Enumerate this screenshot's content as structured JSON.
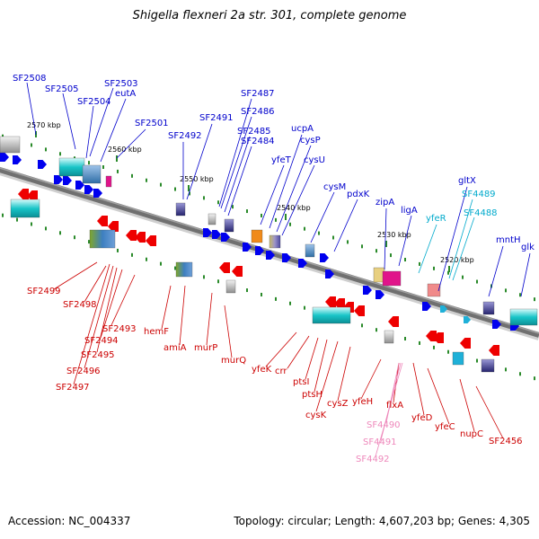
{
  "title": "Shigella flexneri 2a str. 301, complete genome",
  "footer": {
    "accession": "Accession: NC_004337",
    "summary": "Topology: circular; Length: 4,607,203 bp; Genes: 4,305"
  },
  "kbp_labels": [
    "2570 kbp",
    "2560 kbp",
    "2550 kbp",
    "2540 kbp",
    "2530 kbp",
    "2520 kbp"
  ],
  "top_labels": [
    "SF2508",
    "SF2505",
    "SF2504",
    "SF2503",
    "eutA",
    "SF2501",
    "SF2491",
    "SF2492",
    "SF2487",
    "SF2486",
    "SF2485",
    "SF2484",
    "yfeT",
    "ucpA",
    "cysP",
    "cysU",
    "cysM",
    "pdxK",
    "zipA",
    "ligA",
    "yfeR",
    "gltX",
    "SF4489",
    "SF4488",
    "mntH",
    "glk"
  ],
  "bottom_labels": [
    "SF2499",
    "SF2498",
    "SF2493",
    "SF2494",
    "SF2495",
    "SF2496",
    "SF2497",
    "hemF",
    "amiA",
    "murP",
    "murQ",
    "yfeK",
    "crr",
    "ptsI",
    "ptsH",
    "cysK",
    "cysZ",
    "yfeH",
    "flxA",
    "SF4490",
    "SF4491",
    "SF4492",
    "yfeD",
    "yfeC",
    "nupC",
    "SF2456"
  ],
  "colors": {
    "forward_label": "#0000cc",
    "reverse_label": "#cc0000",
    "trna_label": "#00aacc",
    "pseudo_label": "#ee88bb",
    "forward_arrow": "#0000ee",
    "reverse_arrow": "#ee0000",
    "backbone": "#777777",
    "tick": "#2a8a2a"
  }
}
